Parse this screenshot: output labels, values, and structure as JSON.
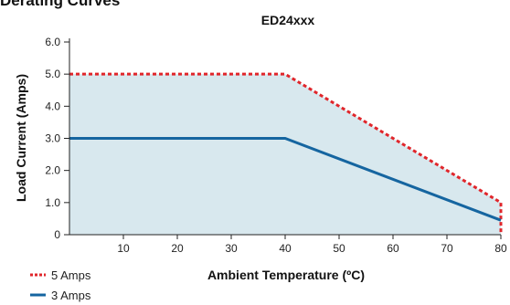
{
  "page": {
    "heading": "Derating Curves"
  },
  "colors": {
    "fill": "#d8e8ee",
    "red": "#e0262b",
    "blue": "#1565a0",
    "axis": "#222222"
  },
  "chart_data": {
    "type": "line",
    "title": "ED24xxx",
    "xlabel": "Ambient Temperature (ºC)",
    "ylabel": "Load Current (Amps)",
    "xlim": [
      0,
      80
    ],
    "ylim": [
      0,
      6
    ],
    "xticks": [
      "10",
      "20",
      "30",
      "40",
      "50",
      "60",
      "70",
      "80"
    ],
    "yticks": [
      "0",
      "1.0",
      "2.0",
      "3.0",
      "4.0",
      "5.0",
      "6.0"
    ],
    "grid": false,
    "legend_position": "bottom-left",
    "series": [
      {
        "name": "5 Amps",
        "style": "dashed",
        "color": "#e0262b",
        "points": [
          [
            0,
            5.0
          ],
          [
            40,
            5.0
          ],
          [
            80,
            1.0
          ],
          [
            80,
            0
          ]
        ]
      },
      {
        "name": "3 Amps",
        "style": "solid",
        "color": "#1565a0",
        "points": [
          [
            0,
            3.0
          ],
          [
            40,
            3.0
          ],
          [
            80,
            0.45
          ]
        ]
      }
    ]
  }
}
